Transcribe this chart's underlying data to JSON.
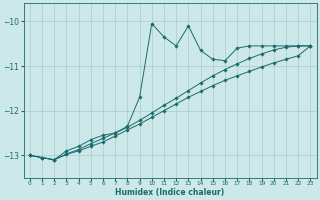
{
  "title": "",
  "xlabel": "Humidex (Indice chaleur)",
  "bg_color": "#cce8e8",
  "grid_color": "#aacccc",
  "line_color": "#1a6b6b",
  "xlim": [
    -0.5,
    23.5
  ],
  "ylim": [
    -13.5,
    -9.6
  ],
  "yticks": [
    -13,
    -12,
    -11,
    -10
  ],
  "xticks": [
    0,
    1,
    2,
    3,
    4,
    5,
    6,
    7,
    8,
    9,
    10,
    11,
    12,
    13,
    14,
    15,
    16,
    17,
    18,
    19,
    20,
    21,
    22,
    23
  ],
  "s1x": [
    0,
    1,
    2,
    3,
    4,
    5,
    6,
    7,
    8,
    9,
    10,
    11,
    12,
    13,
    14,
    15,
    16,
    17,
    18,
    19,
    20,
    21,
    22,
    23
  ],
  "s1y": [
    -13.0,
    -13.05,
    -13.1,
    -12.9,
    -12.8,
    -12.65,
    -12.55,
    -12.5,
    -12.35,
    -11.7,
    -10.05,
    -10.35,
    -10.55,
    -10.1,
    -10.65,
    -10.85,
    -10.88,
    -10.6,
    -10.55,
    -10.55,
    -10.55,
    -10.55,
    -10.55,
    -10.55
  ],
  "s2x": [
    0,
    1,
    2,
    3,
    4,
    5,
    6,
    7,
    8,
    9,
    10,
    11,
    12,
    13,
    14,
    15,
    16,
    17,
    18,
    19,
    20,
    21,
    22,
    23
  ],
  "s2y": [
    -13.0,
    -13.05,
    -13.1,
    -12.97,
    -12.87,
    -12.74,
    -12.62,
    -12.5,
    -12.37,
    -12.22,
    -12.05,
    -11.88,
    -11.72,
    -11.55,
    -11.38,
    -11.22,
    -11.08,
    -10.95,
    -10.83,
    -10.73,
    -10.64,
    -10.58,
    -10.55,
    -10.55
  ],
  "s3x": [
    0,
    1,
    2,
    3,
    4,
    5,
    6,
    7,
    8,
    9,
    10,
    11,
    12,
    13,
    14,
    15,
    16,
    17,
    18,
    19,
    20,
    21,
    22,
    23
  ],
  "s3y": [
    -13.0,
    -13.05,
    -13.1,
    -12.98,
    -12.9,
    -12.8,
    -12.7,
    -12.57,
    -12.43,
    -12.3,
    -12.15,
    -12.0,
    -11.85,
    -11.7,
    -11.57,
    -11.44,
    -11.32,
    -11.22,
    -11.12,
    -11.02,
    -10.93,
    -10.85,
    -10.77,
    -10.55
  ],
  "marker": "D",
  "markersize": 1.8,
  "linewidth": 0.7
}
